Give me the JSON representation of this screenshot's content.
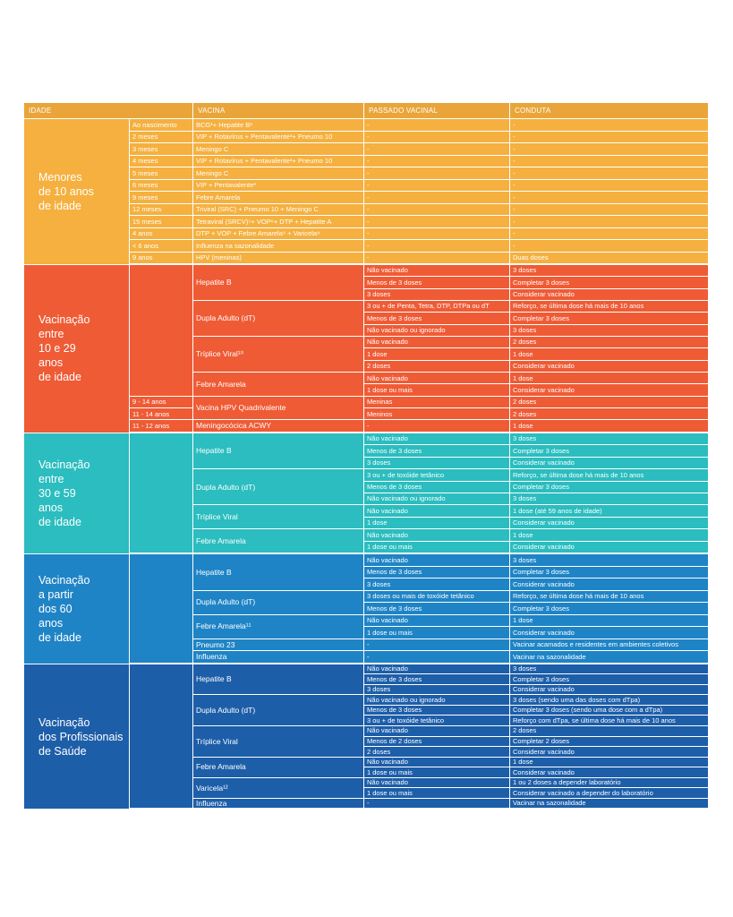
{
  "headers": [
    "IDADE",
    "VACINA",
    "PASSADO VACINAL",
    "CONDUTA"
  ],
  "sections": [
    {
      "id": "menores",
      "label": "Menores\nde 10 anos\nde idade",
      "color": "#f5b03f",
      "row_height": 13.5,
      "ages": [
        {
          "text": "Ao nascimento",
          "rows": 1
        },
        {
          "text": "2 meses",
          "rows": 1
        },
        {
          "text": "3 meses",
          "rows": 1
        },
        {
          "text": "4 meses",
          "rows": 1
        },
        {
          "text": "5 meses",
          "rows": 1
        },
        {
          "text": "6 meses",
          "rows": 1
        },
        {
          "text": "9 meses",
          "rows": 1
        },
        {
          "text": "12 meses",
          "rows": 1
        },
        {
          "text": "15 meses",
          "rows": 1
        },
        {
          "text": "4 anos",
          "rows": 1
        },
        {
          "text": "< 6 anos",
          "rows": 1
        },
        {
          "text": "9 anos",
          "rows": 1
        }
      ],
      "vaccines": [
        {
          "text": "BCG¹+ Hepatite B²",
          "rows": 1
        },
        {
          "text": "VIP + Rotavírus + Pentavalente³+ Pneumo 10",
          "rows": 1
        },
        {
          "text": "Meningo C",
          "rows": 1
        },
        {
          "text": "VIP + Rotavírus + Pentavalente³+ Pneumo 10",
          "rows": 1
        },
        {
          "text": "Meningo C",
          "rows": 1
        },
        {
          "text": "VIP + Pentavalente³",
          "rows": 1
        },
        {
          "text": "Febre Amarela",
          "rows": 1
        },
        {
          "text": "Triviral (SRC) + Pneumo 10 + Meningo C",
          "rows": 1
        },
        {
          "text": "Tetraviral (SRCV)⁵+ VOP⁶+ DTP + Hepatite A",
          "rows": 1
        },
        {
          "text": "DTP + VOP + Febre Amarela⁸ + Varicela⁹",
          "rows": 1
        },
        {
          "text": "Influenza na sazonalidade",
          "rows": 1
        },
        {
          "text": "HPV (meninas)",
          "rows": 1
        }
      ],
      "rows": [
        {
          "passado": "-",
          "conduta": "-"
        },
        {
          "passado": "-",
          "conduta": "-"
        },
        {
          "passado": "-",
          "conduta": "-"
        },
        {
          "passado": "-",
          "conduta": "-"
        },
        {
          "passado": "-",
          "conduta": "-"
        },
        {
          "passado": "-",
          "conduta": "-"
        },
        {
          "passado": "-",
          "conduta": "-"
        },
        {
          "passado": "-",
          "conduta": "-"
        },
        {
          "passado": "-",
          "conduta": "-"
        },
        {
          "passado": "-",
          "conduta": "-"
        },
        {
          "passado": "-",
          "conduta": "-"
        },
        {
          "passado": "-",
          "conduta": "Duas doses"
        }
      ]
    },
    {
      "id": "vac-10-29",
      "label": "Vacinação\nentre\n10 e 29\nanos\nde idade",
      "color": "#ef5b35",
      "row_height": 13.35,
      "ages": [
        {
          "text": "",
          "rows": 11
        },
        {
          "text": "9 - 14 anos",
          "rows": 1
        },
        {
          "text": "11 - 14 anos",
          "rows": 1
        },
        {
          "text": "11 - 12 anos",
          "rows": 1
        }
      ],
      "vaccines": [
        {
          "text": "Hepatite B",
          "rows": 3
        },
        {
          "text": "Dupla Adulto (dT)",
          "rows": 3
        },
        {
          "text": "Tríplice Viral¹⁰",
          "rows": 3
        },
        {
          "text": "Febre Amarela",
          "rows": 2
        },
        {
          "text": "Vacina HPV Quadrivalente",
          "rows": 2
        },
        {
          "text": "Meningocócica ACWY",
          "rows": 1
        }
      ],
      "rows": [
        {
          "passado": "Não vacinado",
          "conduta": "3 doses"
        },
        {
          "passado": "Menos de 3 doses",
          "conduta": "Completar 3 doses"
        },
        {
          "passado": "3 doses",
          "conduta": "Considerar vacinado"
        },
        {
          "passado": "3 ou + de Penta, Tetra, DTP, DTPa ou dT",
          "conduta": "Reforço, se última dose há mais de 10 anos"
        },
        {
          "passado": "Menos de 3 doses",
          "conduta": "Completar 3 doses"
        },
        {
          "passado": "Não vacinado ou ignorado",
          "conduta": "3 doses"
        },
        {
          "passado": "Não vacinado",
          "conduta": "2 doses"
        },
        {
          "passado": "1 dose",
          "conduta": "1 dose"
        },
        {
          "passado": "2 doses",
          "conduta": "Considerar vacinado"
        },
        {
          "passado": "Não vacinado",
          "conduta": "1 dose"
        },
        {
          "passado": "1 dose ou mais",
          "conduta": "Considerar vacinado"
        },
        {
          "passado": "Meninas",
          "conduta": "2 doses"
        },
        {
          "passado": "Meninos",
          "conduta": "2 doses"
        },
        {
          "passado": "-",
          "conduta": "1 dose"
        }
      ]
    },
    {
      "id": "vac-30-59",
      "label": "Vacinação\nentre\n30 e 59\nanos\nde idade",
      "color": "#2bbdbf",
      "row_height": 13.45,
      "ages": [
        {
          "text": "",
          "rows": 10
        }
      ],
      "vaccines": [
        {
          "text": "Hepatite B",
          "rows": 3
        },
        {
          "text": "Dupla Adulto (dT)",
          "rows": 3
        },
        {
          "text": "Tríplice Viral",
          "rows": 2
        },
        {
          "text": "Febre Amarela",
          "rows": 2
        }
      ],
      "rows": [
        {
          "passado": "Não vacinado",
          "conduta": "3 doses"
        },
        {
          "passado": "Menos de 3 doses",
          "conduta": "Completar 3 doses"
        },
        {
          "passado": "3 doses",
          "conduta": "Considerar vacinado"
        },
        {
          "passado": "3 ou + de toxóide tetânico",
          "conduta": "Reforço, se última dose há mais de 10 anos"
        },
        {
          "passado": "Menos de 3 doses",
          "conduta": "Completar 3 doses"
        },
        {
          "passado": "Não vacinado ou ignorado",
          "conduta": "3 doses"
        },
        {
          "passado": "Não vacinado",
          "conduta": "1 dose (até 59 anos de idade)"
        },
        {
          "passado": "1 dose",
          "conduta": "Considerar vacinado"
        },
        {
          "passado": "Não vacinado",
          "conduta": "1 dose"
        },
        {
          "passado": "1 dose ou mais",
          "conduta": "Considerar vacinado"
        }
      ]
    },
    {
      "id": "vac-60",
      "label": "Vacinação\na partir\ndos 60\nanos\nde idade",
      "color": "#1f84c6",
      "row_height": 13.5,
      "ages": [
        {
          "text": "",
          "rows": 9
        }
      ],
      "vaccines": [
        {
          "text": "Hepatite B",
          "rows": 3
        },
        {
          "text": "Dupla Adulto (dT)",
          "rows": 2
        },
        {
          "text": "Febre Amarela¹¹",
          "rows": 2
        },
        {
          "text": "Pneumo 23",
          "rows": 1
        },
        {
          "text": "Influenza",
          "rows": 1
        }
      ],
      "rows": [
        {
          "passado": "Não vacinado",
          "conduta": "3 doses"
        },
        {
          "passado": "Menos de 3 doses",
          "conduta": "Completar 3 doses"
        },
        {
          "passado": "3 doses",
          "conduta": "Considerar vacinado"
        },
        {
          "passado": "3 doses ou mais de toxóide tetânico",
          "conduta": "Reforço, se última dose há mais de 10 anos"
        },
        {
          "passado": "Menos de 3 doses",
          "conduta": "Completar 3 doses"
        },
        {
          "passado": "Não vacinado",
          "conduta": "1 dose"
        },
        {
          "passado": "1 dose ou mais",
          "conduta": "Considerar vacinado"
        },
        {
          "passado": "-",
          "conduta": "Vacinar acamados e residentes em ambientes coletivos"
        },
        {
          "passado": "-",
          "conduta": "Vacinar na sazonalidade"
        }
      ]
    },
    {
      "id": "vac-saude",
      "label": "Vacinação\ndos Profissionais\nde Saúde",
      "color": "#1d5ea9",
      "row_height": 11.55,
      "ages": [
        {
          "text": "",
          "rows": 14
        }
      ],
      "vaccines": [
        {
          "text": "Hepatite B",
          "rows": 3
        },
        {
          "text": "Dupla Adulto (dT)",
          "rows": 3
        },
        {
          "text": "Tríplice Viral",
          "rows": 3
        },
        {
          "text": "Febre Amarela",
          "rows": 2
        },
        {
          "text": "Varicela¹²",
          "rows": 2
        },
        {
          "text": "Influenza",
          "rows": 1
        }
      ],
      "rows": [
        {
          "passado": "Não vacinado",
          "conduta": "3 doses"
        },
        {
          "passado": "Menos de 3 doses",
          "conduta": "Completar 3 doses"
        },
        {
          "passado": "3 doses",
          "conduta": "Considerar vacinado"
        },
        {
          "passado": "Não vacinado ou ignorado",
          "conduta": "3 doses (sendo uma das doses com dTpa)"
        },
        {
          "passado": "Menos de 3 doses",
          "conduta": "Completar 3 doses (sendo uma dose com a dTpa)"
        },
        {
          "passado": "3 ou + de toxóide tetânico",
          "conduta": "Reforço com dTpa, se última dose há mais de 10 anos"
        },
        {
          "passado": "Não vacinado",
          "conduta": "2 doses"
        },
        {
          "passado": "Menos de 2 doses",
          "conduta": "Completar 2 doses"
        },
        {
          "passado": "2 doses",
          "conduta": "Considerar vacinado"
        },
        {
          "passado": "Não vacinado",
          "conduta": "1 dose"
        },
        {
          "passado": "1 dose ou mais",
          "conduta": "Considerar vacinado"
        },
        {
          "passado": "Não vacinado",
          "conduta": "1 ou 2 doses a depender laboratório"
        },
        {
          "passado": "1 dose ou mais",
          "conduta": "Considerar vacinado a depender do laboratório"
        },
        {
          "passado": "-",
          "conduta": "Vacinar na sazonalidade"
        }
      ]
    }
  ]
}
